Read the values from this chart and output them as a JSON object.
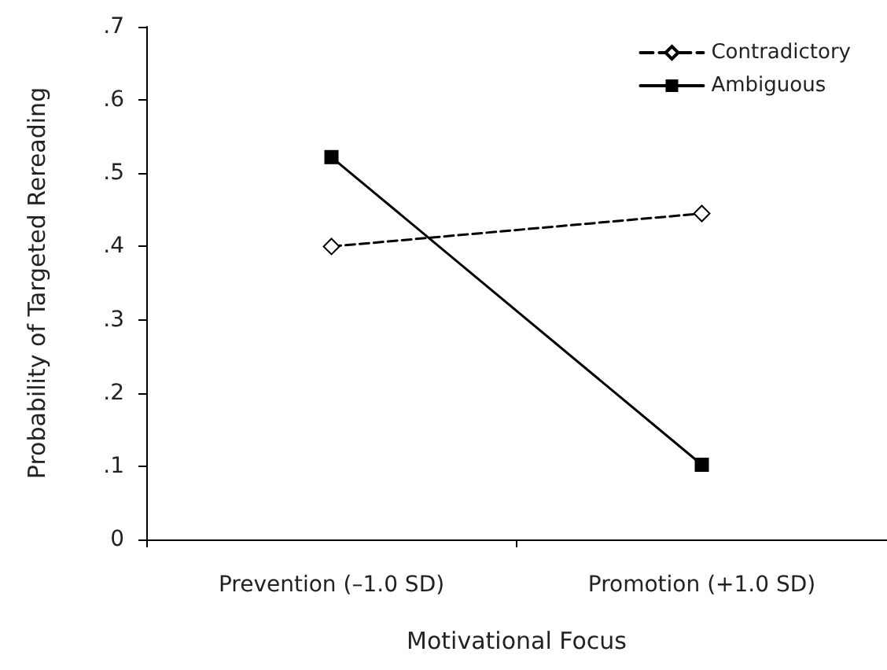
{
  "chart_data": {
    "type": "line",
    "xlabel": "Motivational Focus",
    "ylabel": "Probability of Targeted Rereading",
    "categories": [
      "Prevention (–1.0 SD)",
      "Promotion (+1.0 SD)"
    ],
    "series": [
      {
        "name": "Contradictory",
        "color": "#000000",
        "values": [
          0.4,
          0.445
        ],
        "marker": "diamond",
        "line_style": "dashed"
      },
      {
        "name": "Ambiguous",
        "color": "#000000",
        "values": [
          0.522,
          0.102
        ],
        "marker": "square",
        "line_style": "solid"
      }
    ],
    "ylim": [
      0,
      0.7
    ],
    "yticks": [
      0,
      {
        "value": 0.1,
        "label": ".1"
      },
      {
        "value": 0.2,
        "label": ".2"
      },
      {
        "value": 0.3,
        "label": ".3"
      },
      {
        "value": 0.4,
        "label": ".4"
      },
      {
        "value": 0.5,
        "label": ".5"
      },
      {
        "value": 0.6,
        "label": ".6"
      },
      {
        "value": 0.7,
        "label": ".7"
      }
    ],
    "grid": false,
    "legend": "top right"
  }
}
